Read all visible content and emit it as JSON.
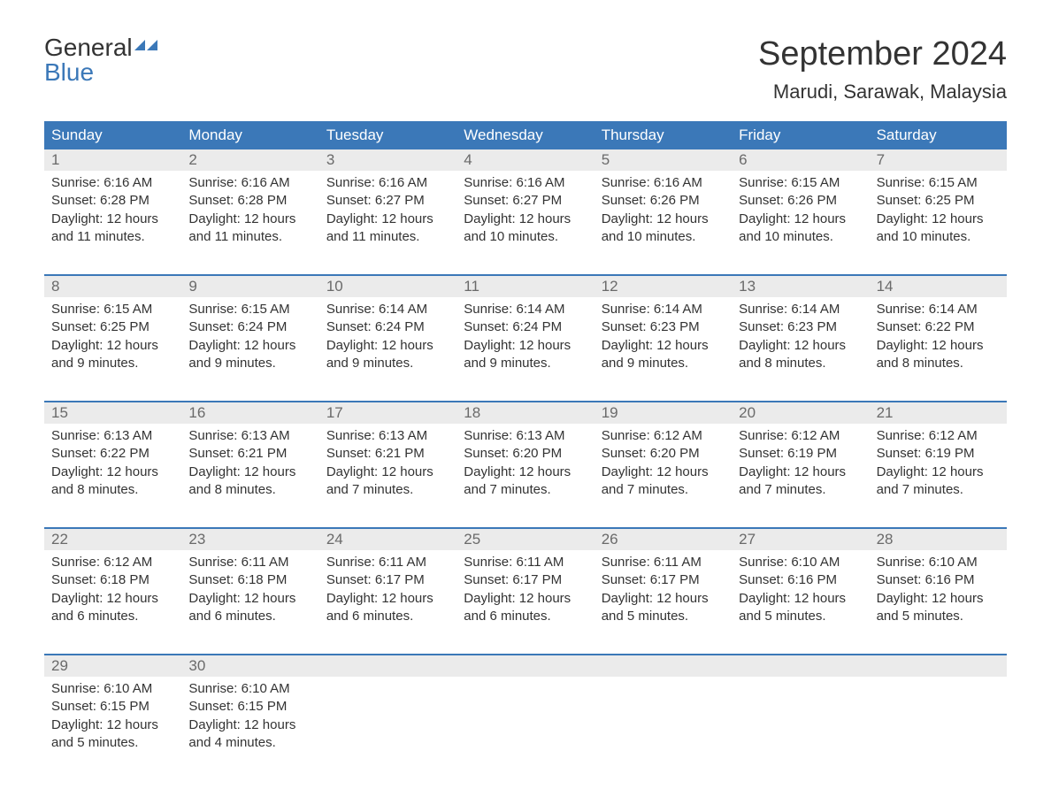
{
  "logo": {
    "text_general": "General",
    "text_blue": "Blue",
    "icon_color": "#3b78b8"
  },
  "title": "September 2024",
  "location": "Marudi, Sarawak, Malaysia",
  "colors": {
    "header_bg": "#3b78b8",
    "header_text": "#ffffff",
    "day_number_bg": "#ebebeb",
    "day_number_text": "#6a6a6a",
    "body_text": "#333333",
    "border": "#3b78b8"
  },
  "day_names": [
    "Sunday",
    "Monday",
    "Tuesday",
    "Wednesday",
    "Thursday",
    "Friday",
    "Saturday"
  ],
  "weeks": [
    [
      {
        "day": "1",
        "sunrise": "Sunrise: 6:16 AM",
        "sunset": "Sunset: 6:28 PM",
        "daylight": "Daylight: 12 hours and 11 minutes."
      },
      {
        "day": "2",
        "sunrise": "Sunrise: 6:16 AM",
        "sunset": "Sunset: 6:28 PM",
        "daylight": "Daylight: 12 hours and 11 minutes."
      },
      {
        "day": "3",
        "sunrise": "Sunrise: 6:16 AM",
        "sunset": "Sunset: 6:27 PM",
        "daylight": "Daylight: 12 hours and 11 minutes."
      },
      {
        "day": "4",
        "sunrise": "Sunrise: 6:16 AM",
        "sunset": "Sunset: 6:27 PM",
        "daylight": "Daylight: 12 hours and 10 minutes."
      },
      {
        "day": "5",
        "sunrise": "Sunrise: 6:16 AM",
        "sunset": "Sunset: 6:26 PM",
        "daylight": "Daylight: 12 hours and 10 minutes."
      },
      {
        "day": "6",
        "sunrise": "Sunrise: 6:15 AM",
        "sunset": "Sunset: 6:26 PM",
        "daylight": "Daylight: 12 hours and 10 minutes."
      },
      {
        "day": "7",
        "sunrise": "Sunrise: 6:15 AM",
        "sunset": "Sunset: 6:25 PM",
        "daylight": "Daylight: 12 hours and 10 minutes."
      }
    ],
    [
      {
        "day": "8",
        "sunrise": "Sunrise: 6:15 AM",
        "sunset": "Sunset: 6:25 PM",
        "daylight": "Daylight: 12 hours and 9 minutes."
      },
      {
        "day": "9",
        "sunrise": "Sunrise: 6:15 AM",
        "sunset": "Sunset: 6:24 PM",
        "daylight": "Daylight: 12 hours and 9 minutes."
      },
      {
        "day": "10",
        "sunrise": "Sunrise: 6:14 AM",
        "sunset": "Sunset: 6:24 PM",
        "daylight": "Daylight: 12 hours and 9 minutes."
      },
      {
        "day": "11",
        "sunrise": "Sunrise: 6:14 AM",
        "sunset": "Sunset: 6:24 PM",
        "daylight": "Daylight: 12 hours and 9 minutes."
      },
      {
        "day": "12",
        "sunrise": "Sunrise: 6:14 AM",
        "sunset": "Sunset: 6:23 PM",
        "daylight": "Daylight: 12 hours and 9 minutes."
      },
      {
        "day": "13",
        "sunrise": "Sunrise: 6:14 AM",
        "sunset": "Sunset: 6:23 PM",
        "daylight": "Daylight: 12 hours and 8 minutes."
      },
      {
        "day": "14",
        "sunrise": "Sunrise: 6:14 AM",
        "sunset": "Sunset: 6:22 PM",
        "daylight": "Daylight: 12 hours and 8 minutes."
      }
    ],
    [
      {
        "day": "15",
        "sunrise": "Sunrise: 6:13 AM",
        "sunset": "Sunset: 6:22 PM",
        "daylight": "Daylight: 12 hours and 8 minutes."
      },
      {
        "day": "16",
        "sunrise": "Sunrise: 6:13 AM",
        "sunset": "Sunset: 6:21 PM",
        "daylight": "Daylight: 12 hours and 8 minutes."
      },
      {
        "day": "17",
        "sunrise": "Sunrise: 6:13 AM",
        "sunset": "Sunset: 6:21 PM",
        "daylight": "Daylight: 12 hours and 7 minutes."
      },
      {
        "day": "18",
        "sunrise": "Sunrise: 6:13 AM",
        "sunset": "Sunset: 6:20 PM",
        "daylight": "Daylight: 12 hours and 7 minutes."
      },
      {
        "day": "19",
        "sunrise": "Sunrise: 6:12 AM",
        "sunset": "Sunset: 6:20 PM",
        "daylight": "Daylight: 12 hours and 7 minutes."
      },
      {
        "day": "20",
        "sunrise": "Sunrise: 6:12 AM",
        "sunset": "Sunset: 6:19 PM",
        "daylight": "Daylight: 12 hours and 7 minutes."
      },
      {
        "day": "21",
        "sunrise": "Sunrise: 6:12 AM",
        "sunset": "Sunset: 6:19 PM",
        "daylight": "Daylight: 12 hours and 7 minutes."
      }
    ],
    [
      {
        "day": "22",
        "sunrise": "Sunrise: 6:12 AM",
        "sunset": "Sunset: 6:18 PM",
        "daylight": "Daylight: 12 hours and 6 minutes."
      },
      {
        "day": "23",
        "sunrise": "Sunrise: 6:11 AM",
        "sunset": "Sunset: 6:18 PM",
        "daylight": "Daylight: 12 hours and 6 minutes."
      },
      {
        "day": "24",
        "sunrise": "Sunrise: 6:11 AM",
        "sunset": "Sunset: 6:17 PM",
        "daylight": "Daylight: 12 hours and 6 minutes."
      },
      {
        "day": "25",
        "sunrise": "Sunrise: 6:11 AM",
        "sunset": "Sunset: 6:17 PM",
        "daylight": "Daylight: 12 hours and 6 minutes."
      },
      {
        "day": "26",
        "sunrise": "Sunrise: 6:11 AM",
        "sunset": "Sunset: 6:17 PM",
        "daylight": "Daylight: 12 hours and 5 minutes."
      },
      {
        "day": "27",
        "sunrise": "Sunrise: 6:10 AM",
        "sunset": "Sunset: 6:16 PM",
        "daylight": "Daylight: 12 hours and 5 minutes."
      },
      {
        "day": "28",
        "sunrise": "Sunrise: 6:10 AM",
        "sunset": "Sunset: 6:16 PM",
        "daylight": "Daylight: 12 hours and 5 minutes."
      }
    ],
    [
      {
        "day": "29",
        "sunrise": "Sunrise: 6:10 AM",
        "sunset": "Sunset: 6:15 PM",
        "daylight": "Daylight: 12 hours and 5 minutes."
      },
      {
        "day": "30",
        "sunrise": "Sunrise: 6:10 AM",
        "sunset": "Sunset: 6:15 PM",
        "daylight": "Daylight: 12 hours and 4 minutes."
      },
      null,
      null,
      null,
      null,
      null
    ]
  ]
}
